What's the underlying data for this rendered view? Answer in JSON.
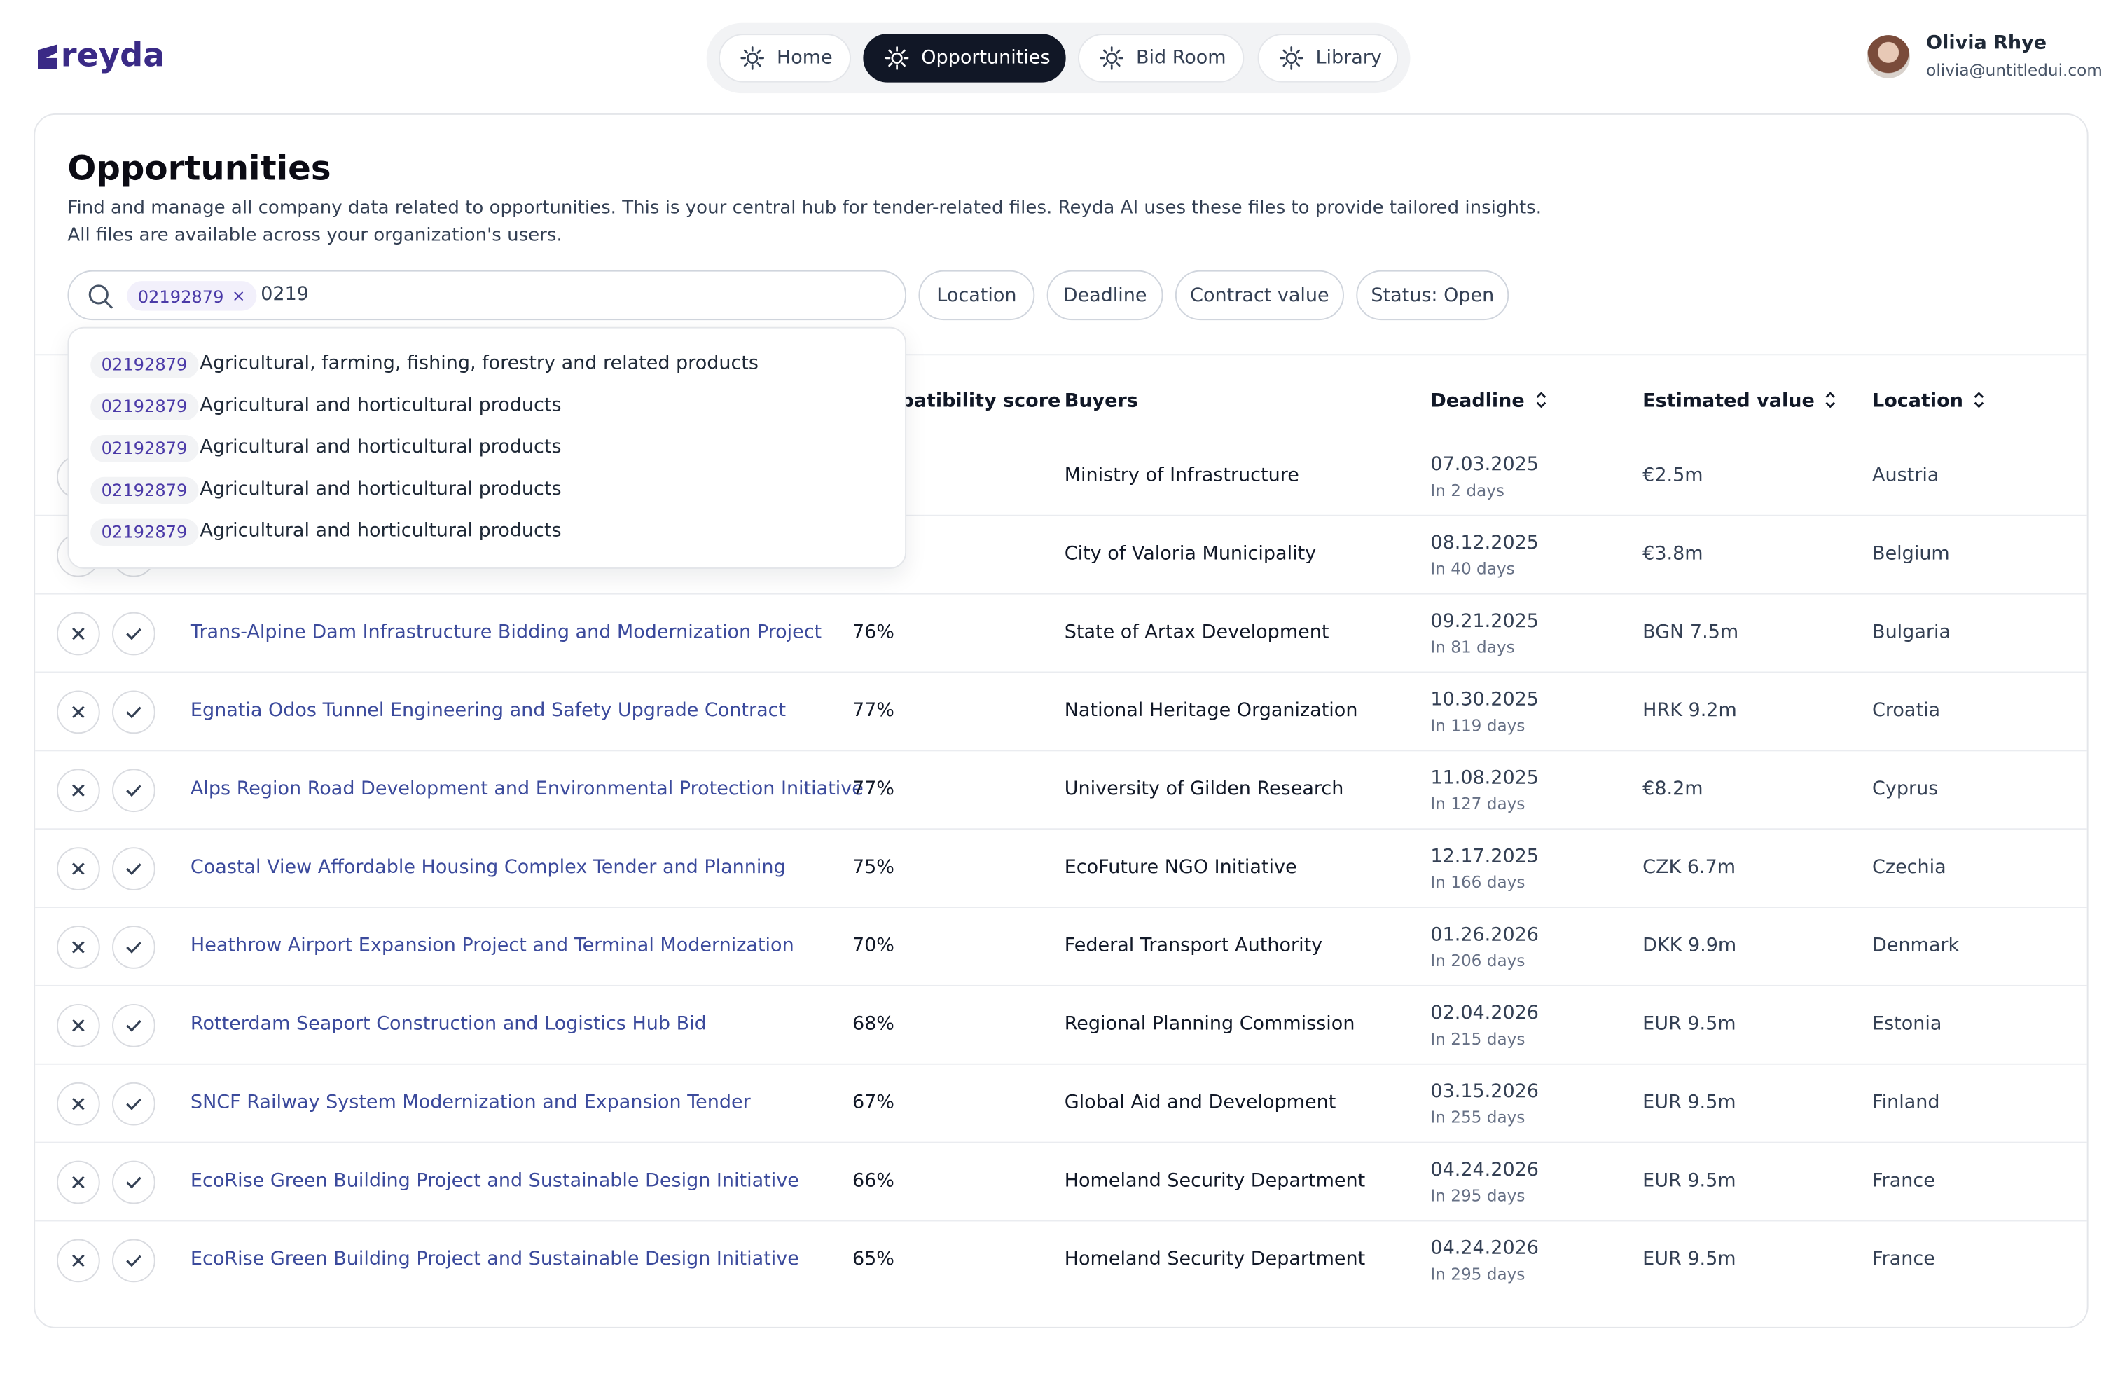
{
  "header": {
    "logo": "reyda",
    "nav": [
      "Home",
      "Opportunities",
      "Bid Room",
      "Library"
    ],
    "active_nav": 1,
    "user": {
      "name": "Olivia Rhye",
      "email": "olivia@untitledui.com"
    }
  },
  "page": {
    "title": "Opportunities",
    "description": [
      "Find and manage all company data related to opportunities. This is your central hub for tender-related files. Reyda AI uses these files to provide tailored insights.",
      "All files are available across your organization's users."
    ]
  },
  "search": {
    "chip": "02192879",
    "query": "0219",
    "filters": [
      "Location",
      "Deadline",
      "Contract value",
      "Status: Open"
    ],
    "suggestions": [
      {
        "code": "02192879",
        "label": "Agricultural, farming, fishing, forestry and related products"
      },
      {
        "code": "02192879",
        "label": "Agricultural and horticultural products"
      },
      {
        "code": "02192879",
        "label": "Agricultural and horticultural products"
      },
      {
        "code": "02192879",
        "label": "Agricultural and horticultural products"
      },
      {
        "code": "02192879",
        "label": "Agricultural and horticultural products"
      }
    ]
  },
  "table": {
    "headers": {
      "score": "Compatibility score",
      "buyers": "Buyers",
      "deadline": "Deadline",
      "value": "Estimated value",
      "location": "Location"
    },
    "rows": [
      {
        "buyer": "Ministry of Infrastructure",
        "deadline": "07.03.2025",
        "days": "In 2 days",
        "value": "€2.5m",
        "location": "Austria"
      },
      {
        "buyer": "City of Valoria Municipality",
        "deadline": "08.12.2025",
        "days": "In 40 days",
        "value": "€3.8m",
        "location": "Belgium"
      },
      {
        "title": "Trans-Alpine Dam Infrastructure Bidding and Modernization Project",
        "score": "76%",
        "buyer": "State of Artax Development",
        "deadline": "09.21.2025",
        "days": "In 81 days",
        "value": "BGN 7.5m",
        "location": "Bulgaria"
      },
      {
        "title": "Egnatia Odos Tunnel Engineering and Safety Upgrade Contract",
        "score": "77%",
        "buyer": "National Heritage Organization",
        "deadline": "10.30.2025",
        "days": "In 119 days",
        "value": "HRK 9.2m",
        "location": "Croatia"
      },
      {
        "title": "Alps Region Road Development and Environmental Protection Initiative",
        "score": "77%",
        "buyer": "University of Gilden Research",
        "deadline": "11.08.2025",
        "days": "In 127 days",
        "value": "€8.2m",
        "location": "Cyprus"
      },
      {
        "title": "Coastal View Affordable Housing Complex Tender and Planning",
        "score": "75%",
        "buyer": "EcoFuture NGO Initiative",
        "deadline": "12.17.2025",
        "days": "In 166 days",
        "value": "CZK 6.7m",
        "location": "Czechia"
      },
      {
        "title": "Heathrow Airport Expansion Project and Terminal Modernization",
        "score": "70%",
        "buyer": "Federal Transport Authority",
        "deadline": "01.26.2026",
        "days": "In 206 days",
        "value": "DKK 9.9m",
        "location": "Denmark"
      },
      {
        "title": "Rotterdam Seaport Construction and Logistics Hub Bid",
        "score": "68%",
        "buyer": "Regional Planning Commission",
        "deadline": "02.04.2026",
        "days": "In 215 days",
        "value": "EUR 9.5m",
        "location": "Estonia"
      },
      {
        "title": "SNCF Railway System Modernization and Expansion Tender",
        "score": "67%",
        "buyer": "Global Aid and Development",
        "deadline": "03.15.2026",
        "days": "In 255 days",
        "value": "EUR 9.5m",
        "location": "Finland"
      },
      {
        "title": "EcoRise Green Building Project and Sustainable Design Initiative",
        "score": "66%",
        "buyer": "Homeland Security Department",
        "deadline": "04.24.2026",
        "days": "In 295 days",
        "value": "EUR 9.5m",
        "location": "France"
      },
      {
        "title": "EcoRise Green Building Project and Sustainable Design Initiative",
        "score": "65%",
        "buyer": "Homeland Security Department",
        "deadline": "04.24.2026",
        "days": "In 295 days",
        "value": "EUR 9.5m",
        "location": "France"
      }
    ]
  }
}
